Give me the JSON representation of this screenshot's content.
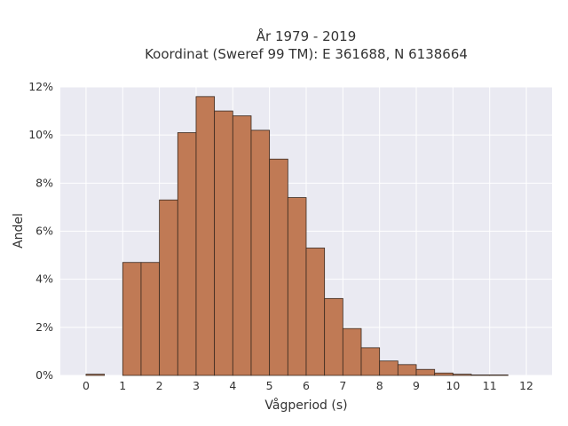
{
  "chart_data": {
    "type": "bar",
    "title_lines": [
      "År 1979 - 2019",
      "Koordinat (Sweref 99 TM): E 361688, N 6138664"
    ],
    "xlabel": "Vågperiod (s)",
    "ylabel": "Andel",
    "xlim": [
      -0.7,
      12.7
    ],
    "ylim": [
      0,
      12
    ],
    "x_ticks": [
      0,
      1,
      2,
      3,
      4,
      5,
      6,
      7,
      8,
      9,
      10,
      11,
      12
    ],
    "y_ticks": [
      0,
      2,
      4,
      6,
      8,
      10,
      12
    ],
    "y_tick_labels": [
      "0%",
      "2%",
      "4%",
      "6%",
      "8%",
      "10%",
      "12%"
    ],
    "bin_width": 0.5,
    "bins": [
      {
        "x": 0.0,
        "value": 0.05
      },
      {
        "x": 1.0,
        "value": 4.7
      },
      {
        "x": 1.5,
        "value": 4.7
      },
      {
        "x": 2.0,
        "value": 7.3
      },
      {
        "x": 2.5,
        "value": 10.1
      },
      {
        "x": 3.0,
        "value": 11.6
      },
      {
        "x": 3.5,
        "value": 11.0
      },
      {
        "x": 4.0,
        "value": 10.8
      },
      {
        "x": 4.5,
        "value": 10.2
      },
      {
        "x": 5.0,
        "value": 9.0
      },
      {
        "x": 5.5,
        "value": 7.4
      },
      {
        "x": 6.0,
        "value": 5.3
      },
      {
        "x": 6.5,
        "value": 3.2
      },
      {
        "x": 7.0,
        "value": 1.95
      },
      {
        "x": 7.5,
        "value": 1.15
      },
      {
        "x": 8.0,
        "value": 0.6
      },
      {
        "x": 8.5,
        "value": 0.45
      },
      {
        "x": 9.0,
        "value": 0.25
      },
      {
        "x": 9.5,
        "value": 0.1
      },
      {
        "x": 10.0,
        "value": 0.05
      },
      {
        "x": 10.5,
        "value": 0.02
      },
      {
        "x": 11.0,
        "value": 0.02
      }
    ],
    "grid": true,
    "colors": {
      "bar": "#c07a55",
      "edge": "#3a2a20",
      "plot_bg": "#eaeaf2"
    }
  }
}
